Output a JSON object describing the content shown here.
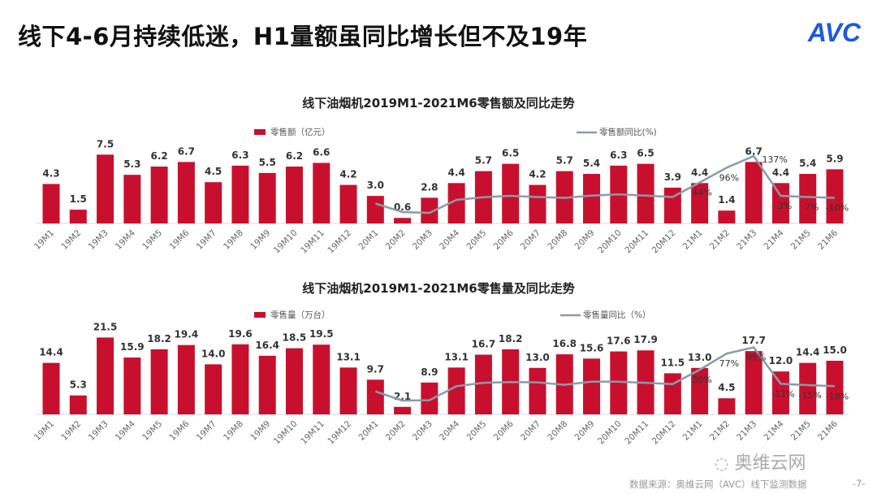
{
  "page": {
    "title": "线下4-6月持续低迷，H1量额虽同比增长但不及19年",
    "logo": "AVC",
    "source": "数据来源：奥维云网（AVC）线下监测数据",
    "page_number": "-7-",
    "wechat_watermark": "奥维云网",
    "bar_color": "#c8102e",
    "line_color": "#8a9ba8"
  },
  "chart_data": [
    {
      "type": "bar+line",
      "title": "线下油烟机2019M1-2021M6零售额及同比走势",
      "categories": [
        "19M1",
        "19M2",
        "19M3",
        "19M4",
        "19M5",
        "19M6",
        "19M7",
        "19M8",
        "19M9",
        "19M10",
        "19M11",
        "19M12",
        "20M1",
        "20M2",
        "20M3",
        "20M4",
        "20M5",
        "20M6",
        "20M7",
        "20M8",
        "20M9",
        "20M10",
        "20M11",
        "20M12",
        "21M1",
        "21M2",
        "21M3",
        "21M4",
        "21M5",
        "21M6"
      ],
      "series": [
        {
          "name": "零售额（亿元）",
          "type": "bar",
          "values": [
            4.3,
            1.5,
            7.5,
            5.3,
            6.2,
            6.7,
            4.5,
            6.3,
            5.5,
            6.2,
            6.6,
            4.2,
            3.0,
            0.6,
            2.8,
            4.4,
            5.7,
            6.5,
            4.2,
            5.7,
            5.4,
            6.3,
            6.5,
            3.9,
            4.4,
            1.4,
            6.7,
            4.4,
            5.4,
            5.9
          ]
        },
        {
          "name": "零售额同比(%)",
          "type": "line",
          "axis": "secondary",
          "values": [
            null,
            null,
            null,
            null,
            null,
            null,
            null,
            null,
            null,
            null,
            null,
            null,
            -30,
            -60,
            -63,
            -17,
            -8,
            -3,
            -7,
            -10,
            -2,
            2,
            -2,
            -7,
            44,
            96,
            137,
            -3,
            -7,
            -10
          ],
          "labels": [
            null,
            null,
            null,
            null,
            null,
            null,
            null,
            null,
            null,
            null,
            null,
            null,
            null,
            null,
            null,
            null,
            null,
            null,
            null,
            null,
            null,
            null,
            null,
            null,
            "44%",
            "96%",
            "137%",
            "-3%",
            "-7%",
            "-10%"
          ]
        }
      ],
      "ylim": [
        0,
        9.3
      ],
      "y2lim": [
        -100,
        200
      ],
      "legend": "top",
      "grid": false
    },
    {
      "type": "bar+line",
      "title": "线下油烟机2019M1-2021M6零售量及同比走势",
      "categories": [
        "19M1",
        "19M2",
        "19M3",
        "19M4",
        "19M5",
        "19M6",
        "19M7",
        "19M8",
        "19M9",
        "19M10",
        "19M11",
        "19M12",
        "20M1",
        "20M2",
        "20M3",
        "20M4",
        "20M5",
        "20M6",
        "20M7",
        "20M8",
        "20M9",
        "20M10",
        "20M11",
        "20M12",
        "21M1",
        "21M2",
        "21M3",
        "21M4",
        "21M5",
        "21M6"
      ],
      "series": [
        {
          "name": "零售量（万台）",
          "type": "bar",
          "values": [
            14.4,
            5.3,
            21.5,
            15.9,
            18.2,
            19.4,
            14.0,
            19.6,
            16.4,
            18.5,
            19.5,
            13.1,
            9.7,
            2.1,
            8.9,
            13.1,
            16.7,
            18.2,
            13.0,
            16.8,
            15.6,
            17.6,
            17.9,
            11.5,
            13.0,
            4.5,
            17.7,
            12.0,
            14.4,
            15.0
          ]
        },
        {
          "name": "零售量同比（%）",
          "type": "line",
          "axis": "secondary",
          "values": [
            null,
            null,
            null,
            null,
            null,
            null,
            null,
            null,
            null,
            null,
            null,
            null,
            -33,
            -60,
            -59,
            -18,
            -8,
            -6,
            -7,
            -14,
            -5,
            -5,
            -8,
            -12,
            30,
            77,
            95,
            -11,
            -15,
            -18
          ],
          "labels": [
            null,
            null,
            null,
            null,
            null,
            null,
            null,
            null,
            null,
            null,
            null,
            null,
            null,
            null,
            null,
            null,
            null,
            null,
            null,
            null,
            null,
            null,
            null,
            null,
            "30%",
            "77%",
            "95%",
            "-11%",
            "-15%",
            "-18%"
          ]
        }
      ],
      "ylim": [
        0,
        25
      ],
      "y2lim": [
        -100,
        160
      ],
      "legend": "top",
      "grid": false
    }
  ]
}
